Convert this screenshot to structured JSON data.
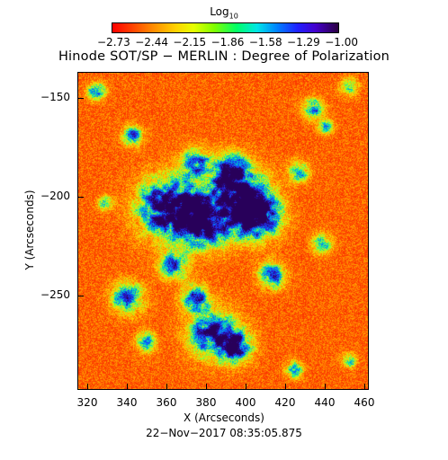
{
  "colorbar": {
    "label": "Log",
    "label_subscript": "10",
    "ticks": [
      "−2.73",
      "−2.44",
      "−2.15",
      "−1.86",
      "−1.58",
      "−1.29",
      "−1.00"
    ]
  },
  "title": "Hinode SOT/SP − MERLIN : Degree of Polarization",
  "axes": {
    "xlabel": "X (Arcseconds)",
    "ylabel": "Y (Arcseconds)",
    "xticks": [
      "320",
      "340",
      "360",
      "380",
      "400",
      "420",
      "440",
      "460"
    ],
    "yticks": [
      "−150",
      "−200",
      "−250"
    ]
  },
  "timestamp": "22−Nov−2017 08:35:05.875",
  "colors": {
    "low": "#ff0000",
    "mid": "#ffd200",
    "high": "#2020ff",
    "max": "#2a0040"
  }
}
